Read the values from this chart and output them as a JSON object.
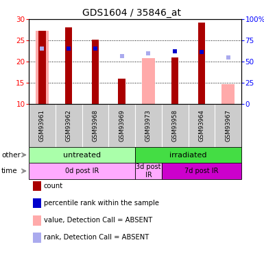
{
  "title": "GDS1604 / 35846_at",
  "samples": [
    "GSM93961",
    "GSM93962",
    "GSM93968",
    "GSM93969",
    "GSM93973",
    "GSM93958",
    "GSM93964",
    "GSM93967"
  ],
  "count_values": [
    27.2,
    28.0,
    25.2,
    16.0,
    0,
    21.0,
    29.2,
    0
  ],
  "count_absent": [
    27.2,
    0,
    0,
    0,
    20.8,
    0,
    0,
    14.7
  ],
  "rank_present": [
    23.0,
    23.0,
    23.0,
    0,
    0,
    22.5,
    22.3,
    0
  ],
  "rank_absent": [
    23.0,
    0,
    0,
    21.3,
    22.0,
    0,
    0,
    21.0
  ],
  "ylim_left": [
    10,
    30
  ],
  "ylim_right": [
    0,
    100
  ],
  "yticks_left": [
    10,
    15,
    20,
    25,
    30
  ],
  "yticks_right": [
    0,
    25,
    50,
    75,
    100
  ],
  "ytick_labels_right": [
    "0",
    "25",
    "50",
    "75",
    "100%"
  ],
  "bar_width": 0.5,
  "count_color": "#aa0000",
  "count_absent_color": "#ffaaaa",
  "rank_present_color": "#0000cc",
  "rank_absent_color": "#aaaaee",
  "bg_sample_row": "#cccccc",
  "group_other": [
    [
      "untreated",
      0,
      3,
      "#aaffaa"
    ],
    [
      "irradiated",
      4,
      7,
      "#44dd44"
    ]
  ],
  "group_time": [
    [
      "0d post IR",
      0,
      3,
      "#ffaaff"
    ],
    [
      "3d post\nIR",
      4,
      4,
      "#ffaaff"
    ],
    [
      "7d post IR",
      5,
      7,
      "#cc00cc"
    ]
  ],
  "legend_items": [
    {
      "label": "count",
      "color": "#aa0000"
    },
    {
      "label": "percentile rank within the sample",
      "color": "#0000cc"
    },
    {
      "label": "value, Detection Call = ABSENT",
      "color": "#ffaaaa"
    },
    {
      "label": "rank, Detection Call = ABSENT",
      "color": "#aaaaee"
    }
  ]
}
